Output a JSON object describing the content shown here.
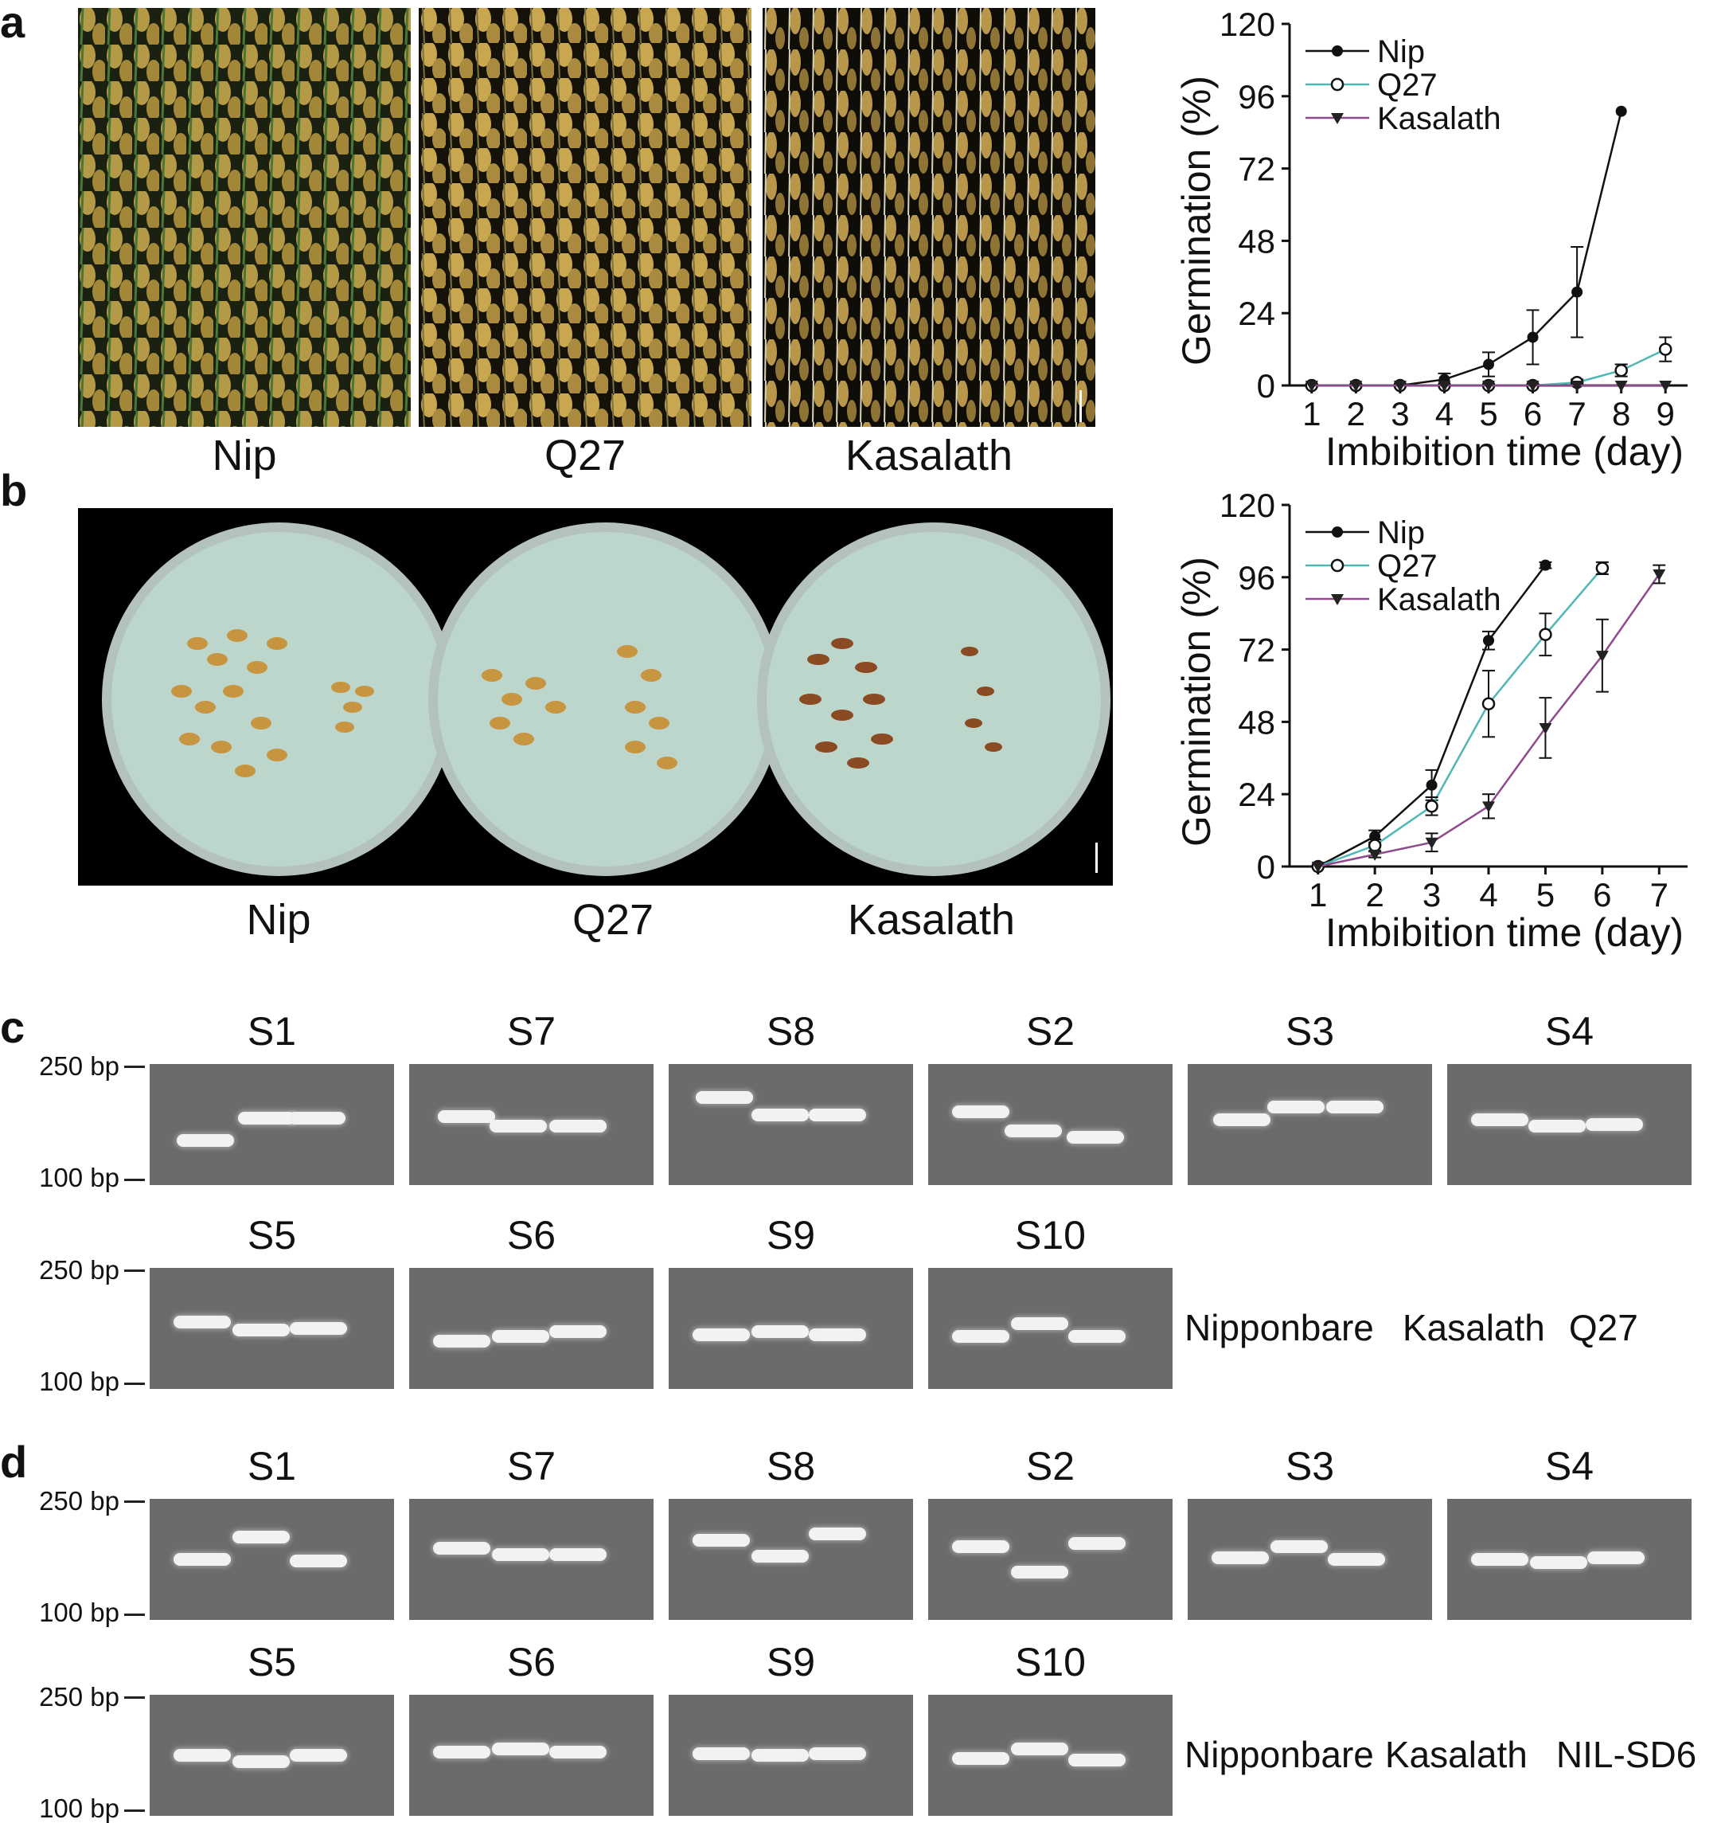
{
  "panels": {
    "a": {
      "letter": "a",
      "photo_captions": [
        "Nip",
        "Q27",
        "Kasalath"
      ],
      "chart": {
        "ylabel": "Germination (%)",
        "xlabel": "Imbibition time (day)"
      }
    },
    "b": {
      "letter": "b",
      "photo_captions": [
        "Nip",
        "Q27",
        "Kasalath"
      ],
      "chart": {
        "ylabel": "Germination (%)",
        "xlabel": "Imbibition time (day)"
      }
    },
    "c": {
      "letter": "c",
      "row1_titles": [
        "S1",
        "S7",
        "S8",
        "S2",
        "S3",
        "S4"
      ],
      "row2_titles": [
        "S5",
        "S6",
        "S9",
        "S10"
      ],
      "bp_high": "250 bp",
      "bp_low": "100 bp",
      "lane_names": [
        "Nipponbare",
        "Kasalath",
        "Q27"
      ]
    },
    "d": {
      "letter": "d",
      "row1_titles": [
        "S1",
        "S7",
        "S8",
        "S2",
        "S3",
        "S4"
      ],
      "row2_titles": [
        "S5",
        "S6",
        "S9",
        "S10"
      ],
      "bp_high": "250 bp",
      "bp_low": "100 bp",
      "lane_names": [
        "Nipponbare",
        "Kasalath",
        "NIL-SD6"
      ]
    }
  },
  "colors": {
    "nip": "#111111",
    "q27": "#4fb7b5",
    "kasalath": "#8e4a8c",
    "gel_background": "#6b6b6b",
    "band": "#f2f2f2"
  },
  "chart_data": [
    {
      "type": "line",
      "panel": "a",
      "xlabel": "Imbibition time (day)",
      "ylabel": "Germination (%)",
      "x": [
        1,
        2,
        3,
        4,
        5,
        6,
        7,
        8,
        9
      ],
      "xlim": [
        0.5,
        9.5
      ],
      "ylim": [
        0,
        120
      ],
      "yticks": [
        0,
        24,
        48,
        72,
        96,
        120
      ],
      "legend_position": "top-left",
      "series": [
        {
          "name": "Nip",
          "marker": "filled-circle",
          "color": "#111111",
          "x": [
            1,
            2,
            3,
            4,
            5,
            6,
            7,
            8
          ],
          "values": [
            0,
            0,
            0,
            2,
            7,
            16,
            31,
            91
          ],
          "errors": [
            0,
            0,
            0,
            2,
            4,
            9,
            15,
            0
          ]
        },
        {
          "name": "Q27",
          "marker": "open-circle",
          "color": "#4fb7b5",
          "x": [
            1,
            2,
            3,
            4,
            5,
            6,
            7,
            8,
            9
          ],
          "values": [
            0,
            0,
            0,
            0,
            0,
            0,
            1,
            5,
            12
          ],
          "errors": [
            0,
            0,
            0,
            0,
            0,
            0,
            1,
            2,
            4
          ]
        },
        {
          "name": "Kasalath",
          "marker": "filled-triangle-down",
          "color": "#8e4a8c",
          "x": [
            1,
            2,
            3,
            4,
            5,
            6,
            7,
            8,
            9
          ],
          "values": [
            0,
            0,
            0,
            0,
            0,
            0,
            0,
            0,
            0
          ],
          "errors": [
            0,
            0,
            0,
            0,
            0,
            0,
            0,
            0,
            0
          ]
        }
      ]
    },
    {
      "type": "line",
      "panel": "b",
      "xlabel": "Imbibition time (day)",
      "ylabel": "Germination (%)",
      "x": [
        1,
        2,
        3,
        4,
        5,
        6,
        7
      ],
      "xlim": [
        0.5,
        7.5
      ],
      "ylim": [
        0,
        120
      ],
      "yticks": [
        0,
        24,
        48,
        72,
        96,
        120
      ],
      "legend_position": "top-left",
      "series": [
        {
          "name": "Nip",
          "marker": "filled-circle",
          "color": "#111111",
          "x": [
            1,
            2,
            3,
            4,
            5
          ],
          "values": [
            0,
            10,
            27,
            75,
            100
          ],
          "errors": [
            0,
            2,
            5,
            3,
            1
          ]
        },
        {
          "name": "Q27",
          "marker": "open-circle",
          "color": "#4fb7b5",
          "x": [
            1,
            2,
            3,
            4,
            5,
            6
          ],
          "values": [
            0,
            7,
            20,
            54,
            77,
            99
          ],
          "errors": [
            0,
            2,
            3,
            11,
            7,
            2
          ]
        },
        {
          "name": "Kasalath",
          "marker": "filled-triangle-down",
          "color": "#8e4a8c",
          "x": [
            1,
            2,
            3,
            4,
            5,
            6,
            7
          ],
          "values": [
            0,
            4,
            8,
            20,
            46,
            70,
            97
          ],
          "errors": [
            0,
            1,
            3,
            4,
            10,
            12,
            3
          ]
        }
      ]
    }
  ]
}
